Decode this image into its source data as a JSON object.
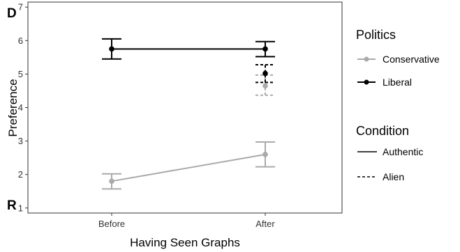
{
  "chart_data": {
    "type": "line",
    "xlabel": "Having Seen Graphs",
    "ylabel": "Preference",
    "categories": [
      "Before",
      "After"
    ],
    "ylim": [
      0.85,
      7.15
    ],
    "yticks": [
      1,
      2,
      3,
      4,
      5,
      6,
      7
    ],
    "y_end_labels": {
      "top": "D",
      "bottom": "R"
    },
    "series": [
      {
        "name": "Liberal",
        "politics": "Liberal",
        "condition": "Authentic",
        "color": "#000000",
        "points": [
          {
            "x": "Before",
            "y": 5.75,
            "low": 5.45,
            "high": 6.05
          },
          {
            "x": "After",
            "y": 5.75,
            "low": 5.52,
            "high": 5.97
          }
        ]
      },
      {
        "name": "Liberal",
        "politics": "Liberal",
        "condition": "Alien",
        "color": "#000000",
        "points": [
          {
            "x": "After",
            "y": 5.02,
            "low": 4.75,
            "high": 5.28
          }
        ]
      },
      {
        "name": "Conservative",
        "politics": "Conservative",
        "condition": "Authentic",
        "color": "#aaaaaa",
        "points": [
          {
            "x": "Before",
            "y": 1.8,
            "low": 1.57,
            "high": 2.02
          },
          {
            "x": "After",
            "y": 2.6,
            "low": 2.23,
            "high": 2.97
          }
        ]
      },
      {
        "name": "Conservative",
        "politics": "Conservative",
        "condition": "Alien",
        "color": "#aaaaaa",
        "points": [
          {
            "x": "After",
            "y": 4.65,
            "low": 4.37,
            "high": 4.97
          }
        ]
      }
    ],
    "legend": {
      "placement": "right",
      "politics_title": "Politics",
      "politics_items": [
        {
          "label": "Conservative",
          "color": "#aaaaaa"
        },
        {
          "label": "Liberal",
          "color": "#000000"
        }
      ],
      "condition_title": "Condition",
      "condition_items": [
        {
          "label": "Authentic",
          "style": "solid"
        },
        {
          "label": "Alien",
          "style": "dashed"
        }
      ]
    },
    "grid": false
  }
}
